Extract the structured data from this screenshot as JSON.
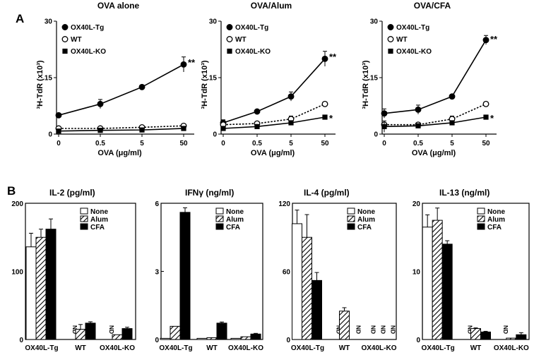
{
  "panel_labels": [
    "A",
    "B"
  ],
  "chart_data": [
    {
      "type": "line",
      "title": "OVA alone",
      "xlabel": "OVA (μg/ml)",
      "ylabel": "³H-TdR (x10³)",
      "categories": [
        "0",
        "0.5",
        "5",
        "50"
      ],
      "ylim": [
        0,
        30
      ],
      "yticks": [
        0,
        15,
        30
      ],
      "series": [
        {
          "name": "OX40L-Tg",
          "values": [
            5,
            8,
            12.5,
            18.5
          ],
          "errors": [
            0,
            1.2,
            0,
            2
          ],
          "marker": "filled-circle",
          "line": "solid"
        },
        {
          "name": "WT",
          "values": [
            1.5,
            1.5,
            1.8,
            2.2
          ],
          "errors": [
            0,
            0,
            0,
            0.4
          ],
          "marker": "open-circle",
          "line": "dotted"
        },
        {
          "name": "OX40L-KO",
          "values": [
            0.8,
            1.0,
            1.1,
            1.5
          ],
          "errors": [
            0,
            0,
            0,
            0
          ],
          "marker": "filled-square",
          "line": "solid"
        }
      ],
      "annotations": [
        {
          "text": "**",
          "series": "OX40L-Tg",
          "x": "50"
        }
      ]
    },
    {
      "type": "line",
      "title": "OVA/Alum",
      "xlabel": "OVA (μg/ml)",
      "ylabel": "³H-TdR (x10³)",
      "categories": [
        "0",
        "0.5",
        "5",
        "50"
      ],
      "ylim": [
        0,
        30
      ],
      "yticks": [
        0,
        15,
        30
      ],
      "series": [
        {
          "name": "OX40L-Tg",
          "values": [
            3,
            6,
            10,
            20
          ],
          "errors": [
            0.8,
            0,
            1.2,
            2
          ],
          "marker": "filled-circle",
          "line": "solid"
        },
        {
          "name": "WT",
          "values": [
            2.5,
            2.8,
            4,
            8
          ],
          "errors": [
            0,
            0,
            0.8,
            0
          ],
          "marker": "open-circle",
          "line": "dotted"
        },
        {
          "name": "OX40L-KO",
          "values": [
            1.5,
            2,
            3,
            4.5
          ],
          "errors": [
            0,
            0,
            0,
            0
          ],
          "marker": "filled-square",
          "line": "solid"
        }
      ],
      "annotations": [
        {
          "text": "**",
          "series": "OX40L-Tg",
          "x": "50"
        },
        {
          "text": "*",
          "series": "OX40L-KO",
          "x": "50"
        }
      ]
    },
    {
      "type": "line",
      "title": "OVA/CFA",
      "xlabel": "OVA (μg/ml)",
      "ylabel": "³H-TdR (x10³)",
      "categories": [
        "0",
        "0.5",
        "5",
        "50"
      ],
      "ylim": [
        0,
        30
      ],
      "yticks": [
        0,
        15,
        30
      ],
      "series": [
        {
          "name": "OX40L-Tg",
          "values": [
            5.5,
            6.5,
            10,
            25
          ],
          "errors": [
            1.2,
            1.2,
            0,
            1.2
          ],
          "marker": "filled-circle",
          "line": "solid"
        },
        {
          "name": "WT",
          "values": [
            2.5,
            2.5,
            4,
            8
          ],
          "errors": [
            0,
            0,
            0.8,
            0
          ],
          "marker": "open-circle",
          "line": "dotted"
        },
        {
          "name": "OX40L-KO",
          "values": [
            2,
            2.2,
            3,
            4.5
          ],
          "errors": [
            1.5,
            0,
            0,
            0
          ],
          "marker": "filled-square",
          "line": "solid"
        }
      ],
      "annotations": [
        {
          "text": "**",
          "series": "OX40L-Tg",
          "x": "50"
        },
        {
          "text": "*",
          "series": "OX40L-KO",
          "x": "50"
        }
      ]
    },
    {
      "type": "bar",
      "title": "IL-2 (pg/ml)",
      "categories": [
        "OX40L-Tg",
        "WT",
        "OX40L-KO"
      ],
      "ylim": [
        0,
        200
      ],
      "yticks": [
        0,
        100,
        200
      ],
      "series": [
        {
          "name": "None",
          "values": [
            136,
            null,
            null
          ],
          "errors": [
            20,
            0,
            0
          ],
          "style": "open"
        },
        {
          "name": "Alum",
          "values": [
            150,
            15,
            7
          ],
          "errors": [
            12,
            7,
            0
          ],
          "style": "hatched"
        },
        {
          "name": "CFA",
          "values": [
            162,
            24,
            16
          ],
          "errors": [
            15,
            2,
            2
          ],
          "style": "filled"
        }
      ],
      "nd": [
        {
          "category": "WT",
          "series": "None"
        },
        {
          "category": "OX40L-KO",
          "series": "None"
        }
      ]
    },
    {
      "type": "bar",
      "title": "IFNγ (ng/ml)",
      "categories": [
        "OX40L-Tg",
        "WT",
        "OX40L-KO"
      ],
      "ylim": [
        0,
        6
      ],
      "yticks": [
        0,
        3,
        6
      ],
      "series": [
        {
          "name": "None",
          "values": [
            0.05,
            0.05,
            0.05
          ],
          "errors": [
            0,
            0,
            0
          ],
          "style": "open"
        },
        {
          "name": "Alum",
          "values": [
            0.58,
            0.08,
            0.12
          ],
          "errors": [
            0,
            0,
            0
          ],
          "style": "hatched"
        },
        {
          "name": "CFA",
          "values": [
            5.6,
            0.72,
            0.24
          ],
          "errors": [
            0.2,
            0.05,
            0.03
          ],
          "style": "filled"
        }
      ],
      "nd": []
    },
    {
      "type": "bar",
      "title": "IL-4 (pg/ml)",
      "categories": [
        "OX40L-Tg",
        "WT",
        "OX40L-KO"
      ],
      "ylim": [
        0,
        120
      ],
      "yticks": [
        0,
        60,
        120
      ],
      "series": [
        {
          "name": "None",
          "values": [
            102,
            null,
            null
          ],
          "errors": [
            12,
            0,
            0
          ],
          "style": "open"
        },
        {
          "name": "Alum",
          "values": [
            90,
            25,
            null
          ],
          "errors": [
            20,
            3,
            0
          ],
          "style": "hatched"
        },
        {
          "name": "CFA",
          "values": [
            52,
            null,
            null
          ],
          "errors": [
            7,
            0,
            0
          ],
          "style": "filled"
        }
      ],
      "nd": [
        {
          "category": "WT",
          "series": "None"
        },
        {
          "category": "WT",
          "series": "CFA"
        },
        {
          "category": "OX40L-KO",
          "series": "None"
        },
        {
          "category": "OX40L-KO",
          "series": "Alum"
        },
        {
          "category": "OX40L-KO",
          "series": "CFA"
        }
      ]
    },
    {
      "type": "bar",
      "title": "IL-13 (ng/ml)",
      "categories": [
        "OX40L-Tg",
        "WT",
        "OX40L-KO"
      ],
      "ylim": [
        0,
        20
      ],
      "yticks": [
        0,
        10,
        20
      ],
      "series": [
        {
          "name": "None",
          "values": [
            16.5,
            null,
            null
          ],
          "errors": [
            1.8,
            0,
            0
          ],
          "style": "open"
        },
        {
          "name": "Alum",
          "values": [
            17.5,
            1.6,
            0.2
          ],
          "errors": [
            1.8,
            0.1,
            0
          ],
          "style": "hatched"
        },
        {
          "name": "CFA",
          "values": [
            14,
            1.1,
            0.7
          ],
          "errors": [
            0.5,
            0.1,
            0.3
          ],
          "style": "filled"
        }
      ],
      "nd": [
        {
          "category": "WT",
          "series": "None"
        },
        {
          "category": "OX40L-KO",
          "series": "None"
        }
      ]
    }
  ]
}
